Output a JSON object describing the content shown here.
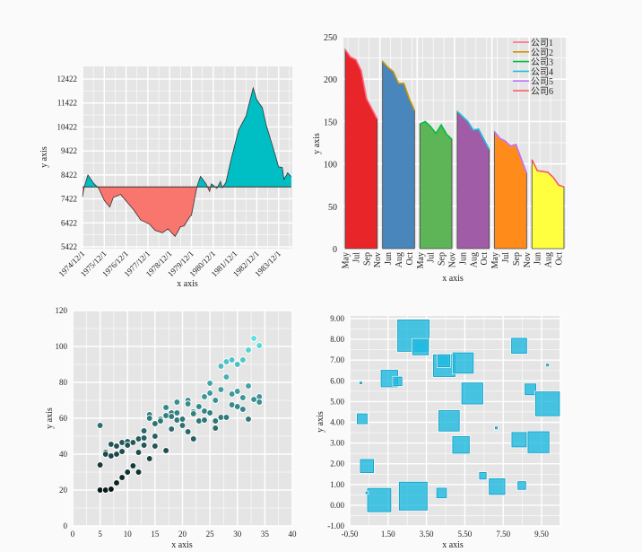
{
  "chart_data": [
    {
      "type": "area",
      "xlabel": "x axis",
      "ylabel": "y axis",
      "x_ticks": [
        "1974/12/1",
        "1975/12/1",
        "1976/12/1",
        "1977/12/1",
        "1978/12/1",
        "1979/12/1",
        "1980/12/1",
        "1981/12/1",
        "1982/12/1",
        "1983/12/1"
      ],
      "y_ticks": [
        "5422",
        "6422",
        "7422",
        "8422",
        "9422",
        "10422",
        "11422",
        "12422"
      ],
      "ylim": [
        5350,
        12950
      ],
      "baseline": 7922,
      "grid": true,
      "colors": {
        "above": "#00BFC4",
        "below": "#F8766D",
        "panel": "#E5E5E5"
      },
      "points": [
        [
          "1974/12/1",
          7510
        ],
        [
          "1975/1/1",
          7922
        ],
        [
          "1975/3/1",
          8422
        ],
        [
          "1975/6/1",
          8085
        ],
        [
          "1975/9/1",
          7860
        ],
        [
          "1975/12/1",
          7360
        ],
        [
          "1976/3/1",
          7085
        ],
        [
          "1976/5/1",
          7485
        ],
        [
          "1976/9/1",
          7610
        ],
        [
          "1976/12/1",
          7335
        ],
        [
          "1977/4/1",
          6985
        ],
        [
          "1977/8/1",
          6547
        ],
        [
          "1978/1/1",
          6360
        ],
        [
          "1978/4/1",
          6110
        ],
        [
          "1978/8/1",
          6010
        ],
        [
          "1978/11/1",
          6170
        ],
        [
          "1979/3/1",
          5860
        ],
        [
          "1979/6/1",
          6260
        ],
        [
          "1979/8/1",
          6297
        ],
        [
          "1979/11/1",
          6672
        ],
        [
          "1979/12/1",
          6735
        ],
        [
          "1980/3/1",
          7922
        ],
        [
          "1980/5/1",
          8360
        ],
        [
          "1980/8/1",
          8047
        ],
        [
          "1980/10/1",
          7735
        ],
        [
          "1980/11/1",
          8047
        ],
        [
          "1981/2/1",
          7860
        ],
        [
          "1981/4/1",
          8147
        ],
        [
          "1981/5/1",
          7885
        ],
        [
          "1981/7/1",
          8110
        ],
        [
          "1981/10/1",
          9110
        ],
        [
          "1982/2/1",
          10297
        ],
        [
          "1982/6/1",
          10860
        ],
        [
          "1982/10/1",
          12047
        ],
        [
          "1982/12/1",
          11547
        ],
        [
          "1983/3/1",
          11235
        ],
        [
          "1983/5/1",
          10547
        ],
        [
          "1983/9/1",
          9547
        ],
        [
          "1983/12/1",
          8760
        ],
        [
          "1984/2/1",
          8735
        ],
        [
          "1984/3/1",
          8235
        ],
        [
          "1984/5/1",
          8510
        ],
        [
          "1984/7/1",
          8360
        ]
      ]
    },
    {
      "type": "area",
      "xlabel": "x axis",
      "ylabel": "y axis",
      "x_tick_labels": [
        "May",
        "Jul",
        "Sep",
        "Nov",
        "Jun",
        "Aug",
        "Oct",
        "May",
        "Jul",
        "Sep",
        "Nov",
        "Jun",
        "Aug",
        "Oct",
        "May",
        "Jul",
        "Sep",
        "Nov",
        "Jun",
        "Aug",
        "Oct"
      ],
      "y_ticks": [
        "0",
        "50",
        "100",
        "150",
        "200",
        "250"
      ],
      "ylim": [
        0,
        250
      ],
      "grid": true,
      "legend": "top-right",
      "series": [
        {
          "name": "公司1",
          "values": [
            235,
            226,
            223,
            210,
            177,
            165,
            153
          ],
          "fill": "#E8262A",
          "line": "#FF6680"
        },
        {
          "name": "公司2",
          "values": [
            221,
            214,
            209,
            195,
            195,
            177,
            163
          ],
          "fill": "#4886BB",
          "line": "#C8960A"
        },
        {
          "name": "公司3",
          "values": [
            147,
            150,
            144,
            136,
            146,
            135,
            129
          ],
          "fill": "#5DB558",
          "line": "#00C040"
        },
        {
          "name": "公司4",
          "values": [
            162,
            156,
            150,
            140,
            141,
            129,
            117
          ],
          "fill": "#A05CA6",
          "line": "#20C0E0"
        },
        {
          "name": "公司5",
          "values": [
            138,
            130,
            127,
            121,
            123,
            106,
            89
          ],
          "fill": "#FF8C1A",
          "line": "#C070FF"
        },
        {
          "name": "公司6",
          "values": [
            105,
            92,
            91,
            90,
            84,
            75,
            73
          ],
          "fill": "#FFFF40",
          "line": "#FF5566"
        }
      ]
    },
    {
      "type": "scatter",
      "xlabel": "x axis",
      "ylabel": "y axis",
      "x_ticks": [
        "0",
        "5",
        "10",
        "15",
        "20",
        "25",
        "30",
        "35",
        "40"
      ],
      "y_ticks": [
        "0",
        "20",
        "40",
        "60",
        "80",
        "100",
        "120"
      ],
      "xlim": [
        0,
        40
      ],
      "ylim": [
        0,
        120
      ],
      "grid": true,
      "colors": {
        "low": "#0A1A1A",
        "high": "#5BE3E6"
      },
      "points": [
        [
          5,
          56
        ],
        [
          5,
          34
        ],
        [
          5,
          20
        ],
        [
          6,
          20
        ],
        [
          7,
          20.5
        ],
        [
          6,
          41
        ],
        [
          6,
          40
        ],
        [
          7,
          45.5
        ],
        [
          7,
          39
        ],
        [
          8,
          44.5
        ],
        [
          8,
          40
        ],
        [
          8,
          24
        ],
        [
          9,
          46.5
        ],
        [
          9,
          41.5
        ],
        [
          9,
          27
        ],
        [
          10,
          47
        ],
        [
          10,
          45
        ],
        [
          10,
          30
        ],
        [
          11,
          46.5
        ],
        [
          11,
          33.5
        ],
        [
          12,
          48.5
        ],
        [
          12,
          41
        ],
        [
          12,
          30
        ],
        [
          13,
          53
        ],
        [
          13,
          49
        ],
        [
          13,
          45
        ],
        [
          14,
          62
        ],
        [
          14,
          60
        ],
        [
          14,
          37.5
        ],
        [
          15,
          57
        ],
        [
          15,
          50
        ],
        [
          15,
          44.5
        ],
        [
          16,
          59.5
        ],
        [
          16,
          58.5
        ],
        [
          17,
          66
        ],
        [
          17,
          61.5
        ],
        [
          17,
          42
        ],
        [
          18,
          63
        ],
        [
          18,
          61
        ],
        [
          18,
          54
        ],
        [
          19,
          69
        ],
        [
          19,
          63
        ],
        [
          19,
          59
        ],
        [
          20,
          60
        ],
        [
          20,
          59.5
        ],
        [
          20,
          56
        ],
        [
          21,
          70
        ],
        [
          21,
          68
        ],
        [
          21,
          52.5
        ],
        [
          22,
          63.5
        ],
        [
          22,
          62.5
        ],
        [
          22,
          48.5
        ],
        [
          23,
          66.5
        ],
        [
          23,
          58.5
        ],
        [
          24,
          72
        ],
        [
          24,
          64
        ],
        [
          24,
          59
        ],
        [
          25,
          79.5
        ],
        [
          25,
          74
        ],
        [
          25,
          63
        ],
        [
          26,
          70
        ],
        [
          26,
          58.5
        ],
        [
          26,
          54.5
        ],
        [
          27,
          89
        ],
        [
          27,
          76
        ],
        [
          27,
          60.5
        ],
        [
          28,
          91.5
        ],
        [
          28,
          83
        ],
        [
          28,
          60.5
        ],
        [
          29,
          92.5
        ],
        [
          29,
          73.5
        ],
        [
          29,
          67.5
        ],
        [
          30,
          90
        ],
        [
          30,
          75
        ],
        [
          30,
          66.5
        ],
        [
          31,
          92.5
        ],
        [
          31,
          71.5
        ],
        [
          31,
          65
        ],
        [
          32,
          98
        ],
        [
          32,
          78
        ],
        [
          32,
          59.5
        ],
        [
          33,
          104.5
        ],
        [
          33,
          70.5
        ],
        [
          34,
          100.5
        ],
        [
          34,
          72
        ],
        [
          34,
          69
        ]
      ]
    },
    {
      "type": "scatter",
      "xlabel": "x axis",
      "ylabel": "y axis",
      "x_ticks": [
        "-0.50",
        "1.50",
        "3.50",
        "5.50",
        "7.50",
        "9.50"
      ],
      "y_ticks": [
        "-1.00",
        "0.00",
        "1.00",
        "2.00",
        "3.00",
        "4.00",
        "5.00",
        "6.00",
        "7.00",
        "8.00",
        "9.00"
      ],
      "xlim": [
        -0.5,
        10.45
      ],
      "ylim": [
        -1,
        9
      ],
      "grid": true,
      "marker": "square",
      "colors": {
        "fill": "#1AB8E0",
        "stroke": "#0E9EC6"
      },
      "points": [
        [
          2.82,
          8.18,
          1.63
        ],
        [
          3.19,
          7.63,
          0.81
        ],
        [
          4.43,
          6.73,
          1.12
        ],
        [
          4.4,
          6.97,
          0.62
        ],
        [
          5.41,
          6.86,
          1.06
        ],
        [
          1.57,
          6.11,
          0.86
        ],
        [
          2.0,
          5.98,
          0.44
        ],
        [
          5.89,
          5.39,
          1.09
        ],
        [
          8.33,
          7.69,
          0.78
        ],
        [
          9.81,
          6.76,
          0.1
        ],
        [
          0.08,
          5.9,
          0.08
        ],
        [
          8.92,
          5.59,
          0.56
        ],
        [
          9.81,
          4.89,
          1.24
        ],
        [
          0.15,
          4.17,
          0.51
        ],
        [
          4.68,
          4.07,
          1.06
        ],
        [
          7.14,
          3.73,
          0.1
        ],
        [
          8.33,
          3.16,
          0.75
        ],
        [
          9.34,
          3.04,
          1.09
        ],
        [
          5.3,
          2.91,
          0.86
        ],
        [
          0.4,
          1.89,
          0.68
        ],
        [
          6.44,
          1.42,
          0.34
        ],
        [
          7.18,
          0.9,
          0.81
        ],
        [
          8.47,
          0.95,
          0.4
        ],
        [
          4.29,
          0.59,
          0.5
        ],
        [
          2.81,
          0.44,
          1.45
        ],
        [
          1.04,
          0.25,
          1.21
        ],
        [
          0.39,
          0.6,
          0.08
        ]
      ]
    }
  ]
}
